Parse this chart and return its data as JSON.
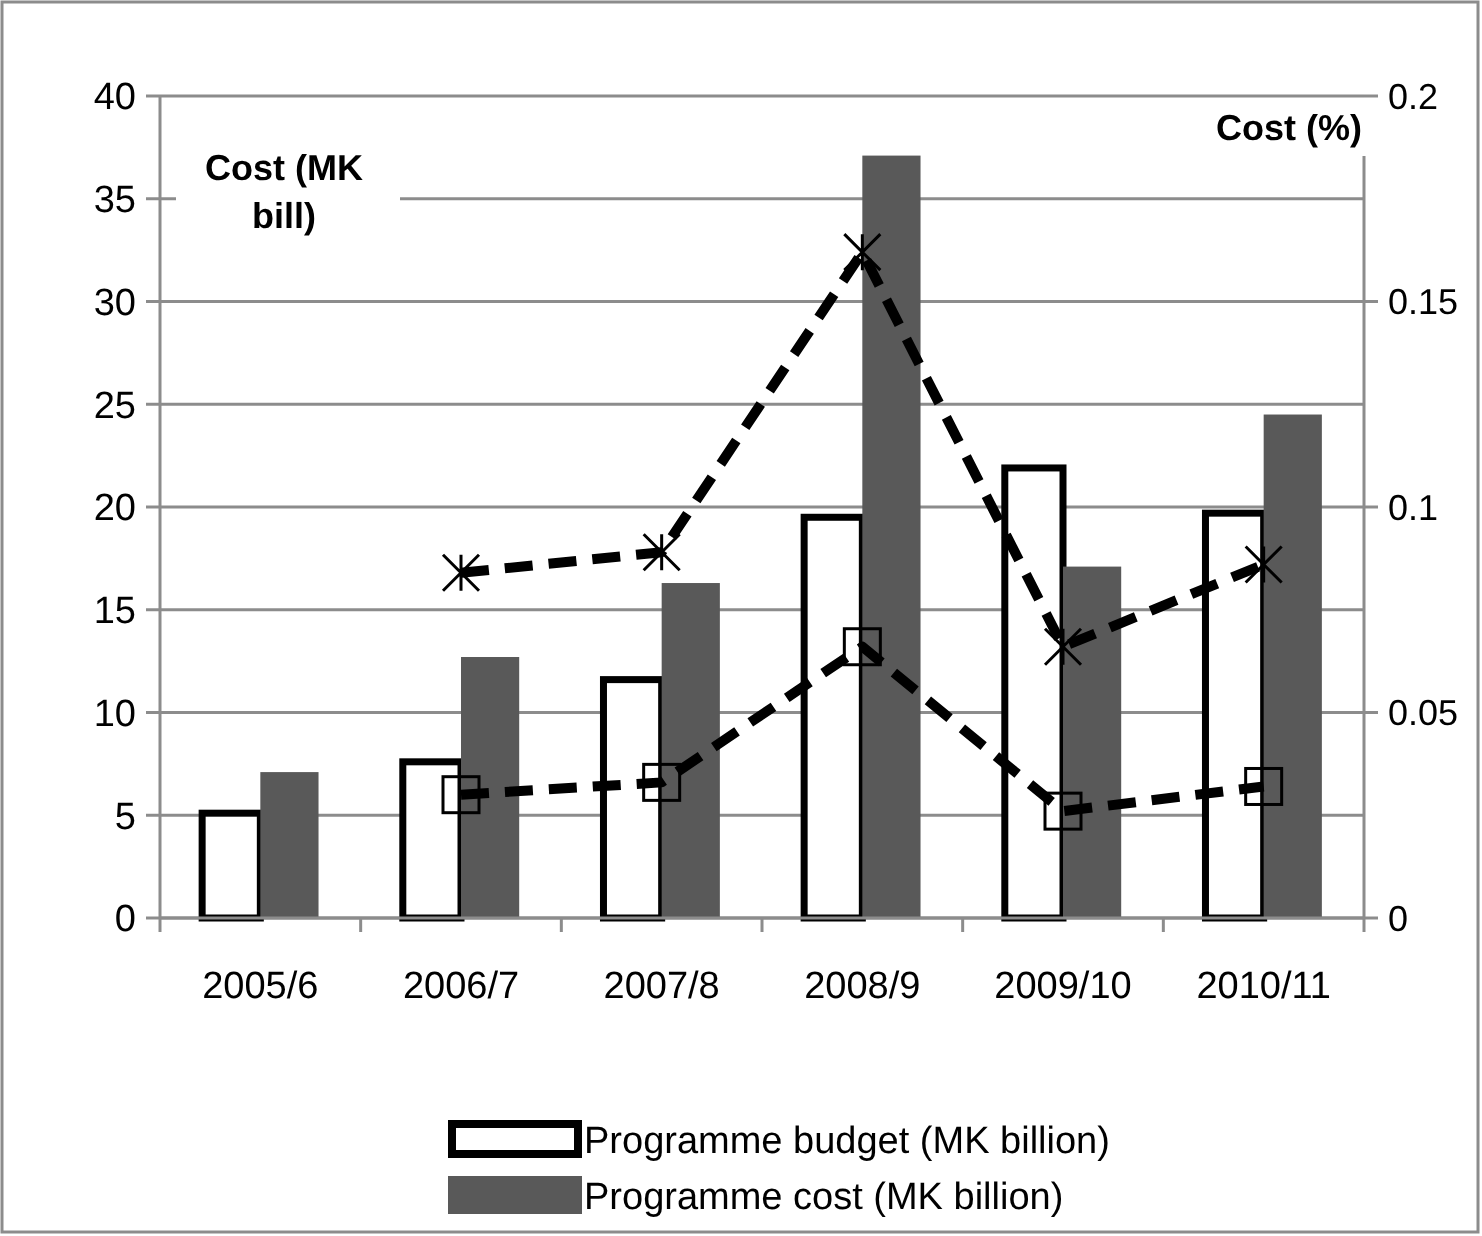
{
  "chart_data": {
    "type": "bar",
    "categories": [
      "2005/6",
      "2006/7",
      "2007/8",
      "2008/9",
      "2009/10",
      "2010/11"
    ],
    "ylabel": "Cost (MK bill)",
    "y2label": "Cost (%)",
    "ylim": [
      0,
      40
    ],
    "yticks": [
      0,
      5,
      10,
      15,
      20,
      25,
      30,
      35,
      40
    ],
    "y2lim": [
      0,
      0.2
    ],
    "y2ticks": [
      0,
      0.05,
      0.1,
      0.15,
      0.2
    ],
    "grid": "y",
    "legend": "bottom",
    "series": [
      {
        "name": "Programme budget (MK billion)",
        "color": "#ffffff",
        "values": [
          5.1,
          7.6,
          11.6,
          19.5,
          21.9,
          19.7
        ]
      },
      {
        "name": "Programme cost (MK billion)",
        "color": "#595959",
        "values": [
          7.1,
          12.7,
          16.3,
          37.1,
          17.1,
          24.5
        ]
      },
      {
        "type": "line",
        "axis": "y2",
        "color": "#000000",
        "marker": "cross",
        "line_style": "dashed",
        "values": [
          null,
          0.084,
          0.089,
          0.162,
          0.066,
          0.086
        ]
      },
      {
        "type": "line",
        "axis": "y2",
        "color": "#000000",
        "marker": "square",
        "line_style": "dashed",
        "values": [
          null,
          0.03,
          0.033,
          0.066,
          0.026,
          0.032
        ]
      }
    ]
  }
}
